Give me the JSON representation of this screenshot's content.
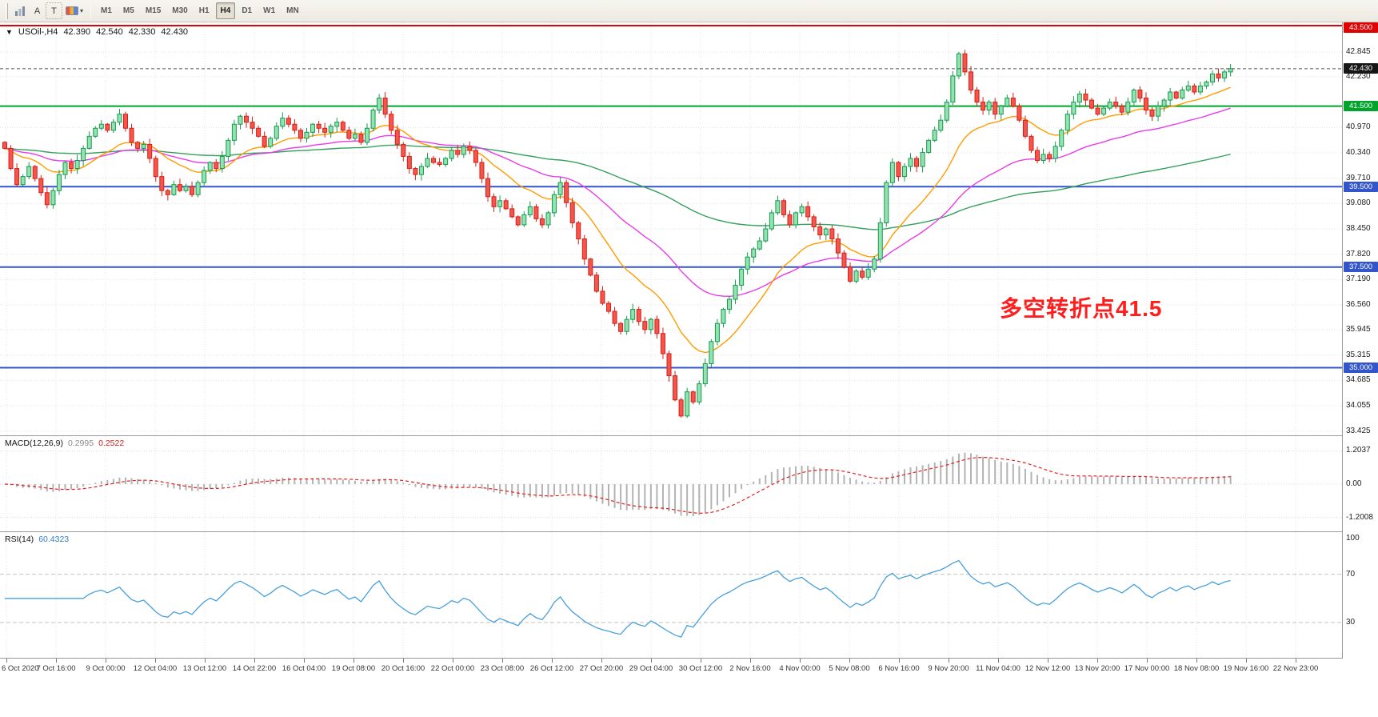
{
  "toolbar": {
    "tools": [
      {
        "label": "A"
      },
      {
        "label": "T"
      }
    ],
    "timeframes": [
      "M1",
      "M5",
      "M15",
      "M30",
      "H1",
      "H4",
      "D1",
      "W1",
      "MN"
    ],
    "active_timeframe": "H4"
  },
  "icons": {
    "symbol_caret": "▼",
    "dropdown_chevron": "▾"
  },
  "header": {
    "symbol": "USOil-,H4",
    "open": "42.390",
    "high": "42.540",
    "low": "42.330",
    "close": "42.430"
  },
  "annotation": {
    "text": "多空转折点41.5",
    "color": "#ff1e1e"
  },
  "axis": {
    "price_ticks": [
      "42.845",
      "42.230",
      "40.970",
      "40.340",
      "39.710",
      "39.080",
      "38.450",
      "37.820",
      "37.190",
      "36.560",
      "35.945",
      "35.315",
      "34.685",
      "34.055",
      "33.425"
    ],
    "badges": [
      {
        "label": "43.500",
        "value": 43.5,
        "color": "#de0202"
      },
      {
        "label": "42.430",
        "value": 42.43,
        "color": "#161616"
      },
      {
        "label": "41.500",
        "value": 41.5,
        "color": "#00a32b"
      },
      {
        "label": "39.500",
        "value": 39.5,
        "color": "#3355cc"
      },
      {
        "label": "37.500",
        "value": 37.5,
        "color": "#3355cc"
      },
      {
        "label": "35.000",
        "value": 35.0,
        "color": "#3355cc"
      }
    ],
    "macd_ticks": [
      {
        "label": "1.2037",
        "value": 1.2037
      },
      {
        "label": "0.00",
        "value": 0
      },
      {
        "label": "-1.2008",
        "value": -1.2008
      }
    ],
    "rsi_ticks": [
      {
        "label": "100",
        "value": 100
      },
      {
        "label": "70",
        "value": 70
      },
      {
        "label": "30",
        "value": 30
      }
    ],
    "time_labels": [
      "6 Oct 2020",
      "7 Oct 16:00",
      "9 Oct 00:00",
      "12 Oct 04:00",
      "13 Oct 12:00",
      "14 Oct 22:00",
      "16 Oct 04:00",
      "19 Oct 08:00",
      "20 Oct 16:00",
      "22 Oct 00:00",
      "23 Oct 08:00",
      "26 Oct 12:00",
      "27 Oct 20:00",
      "29 Oct 04:00",
      "30 Oct 12:00",
      "2 Nov 16:00",
      "4 Nov 00:00",
      "5 Nov 08:00",
      "6 Nov 16:00",
      "9 Nov 20:00",
      "11 Nov 04:00",
      "12 Nov 12:00",
      "13 Nov 20:00",
      "17 Nov 00:00",
      "18 Nov 08:00",
      "19 Nov 16:00",
      "22 Nov 23:00"
    ]
  },
  "chart_data": [
    {
      "type": "candlestick",
      "title": "USOil- H4",
      "ylim": [
        33.3,
        43.58
      ],
      "current_price": 42.43,
      "candle_up_color": "#149a4e",
      "candle_down_color": "#d81f15",
      "hlines": [
        {
          "value": 43.5,
          "color": "#de0202",
          "width": 2
        },
        {
          "value": 41.5,
          "color": "#00a32b",
          "width": 2
        },
        {
          "value": 39.5,
          "color": "#3355cc",
          "width": 2
        },
        {
          "value": 37.5,
          "color": "#3355cc",
          "width": 2
        },
        {
          "value": 35.0,
          "color": "#3355cc",
          "width": 2
        }
      ],
      "ma_lines": [
        {
          "name": "fast",
          "period": 16,
          "color": "#ff9c00"
        },
        {
          "name": "medium",
          "period": 40,
          "color": "#e93ce9"
        },
        {
          "name": "slow",
          "period": 120,
          "color": "#35a05c"
        }
      ],
      "closes": [
        40.45,
        39.95,
        39.55,
        39.75,
        40.0,
        39.7,
        39.35,
        39.05,
        39.4,
        39.8,
        40.1,
        39.95,
        40.15,
        40.45,
        40.75,
        40.95,
        41.05,
        40.9,
        41.1,
        41.3,
        40.95,
        40.6,
        40.45,
        40.55,
        40.2,
        39.75,
        39.4,
        39.3,
        39.55,
        39.4,
        39.5,
        39.3,
        39.6,
        39.9,
        40.1,
        39.95,
        40.25,
        40.65,
        41.05,
        41.25,
        41.1,
        40.95,
        40.75,
        40.5,
        40.7,
        41.0,
        41.2,
        41.05,
        40.9,
        40.7,
        40.85,
        41.05,
        40.95,
        40.85,
        41.0,
        41.1,
        40.9,
        40.7,
        40.8,
        40.6,
        40.95,
        41.4,
        41.7,
        41.3,
        40.9,
        40.55,
        40.25,
        39.95,
        39.8,
        40.0,
        40.2,
        40.1,
        40.05,
        40.2,
        40.4,
        40.3,
        40.5,
        40.4,
        40.1,
        39.7,
        39.25,
        39.0,
        39.15,
        38.95,
        38.75,
        38.55,
        38.8,
        39.0,
        38.7,
        38.55,
        38.85,
        39.3,
        39.6,
        39.1,
        38.6,
        38.2,
        37.7,
        37.3,
        36.9,
        36.6,
        36.4,
        36.1,
        35.9,
        36.2,
        36.45,
        36.15,
        35.95,
        36.2,
        35.85,
        35.35,
        34.8,
        34.2,
        33.8,
        34.4,
        34.15,
        34.6,
        35.1,
        35.65,
        36.1,
        36.45,
        36.7,
        37.05,
        37.45,
        37.75,
        37.95,
        38.15,
        38.45,
        38.85,
        39.15,
        38.8,
        38.55,
        38.85,
        39.0,
        38.75,
        38.5,
        38.3,
        38.45,
        38.2,
        37.85,
        37.5,
        37.15,
        37.4,
        37.25,
        37.45,
        37.7,
        38.6,
        39.6,
        40.1,
        39.75,
        40.0,
        40.2,
        40.0,
        40.35,
        40.65,
        40.9,
        41.15,
        41.6,
        42.25,
        42.8,
        42.35,
        41.9,
        41.6,
        41.4,
        41.6,
        41.3,
        41.5,
        41.7,
        41.5,
        41.15,
        40.75,
        40.4,
        40.15,
        40.3,
        40.2,
        40.5,
        40.9,
        41.3,
        41.6,
        41.8,
        41.65,
        41.45,
        41.3,
        41.45,
        41.6,
        41.5,
        41.35,
        41.6,
        41.9,
        41.7,
        41.4,
        41.25,
        41.5,
        41.65,
        41.85,
        41.7,
        41.9,
        42.0,
        41.85,
        42.0,
        42.1,
        42.3,
        42.2,
        42.35,
        42.43
      ]
    },
    {
      "type": "macd",
      "label": "MACD(12,26,9)",
      "value_main": "0.2995",
      "value_signal": "0.2522",
      "params": {
        "fast": 12,
        "slow": 26,
        "signal": 9
      },
      "ylim": [
        -1.5,
        1.5
      ],
      "histogram_color": "#b3b3b3",
      "signal_color": "#e02020"
    },
    {
      "type": "line",
      "label": "RSI(14)",
      "value": "60.4323",
      "period": 14,
      "levels": [
        70,
        30
      ],
      "ylim": [
        0,
        105
      ],
      "line_color": "#47a0dc"
    }
  ]
}
